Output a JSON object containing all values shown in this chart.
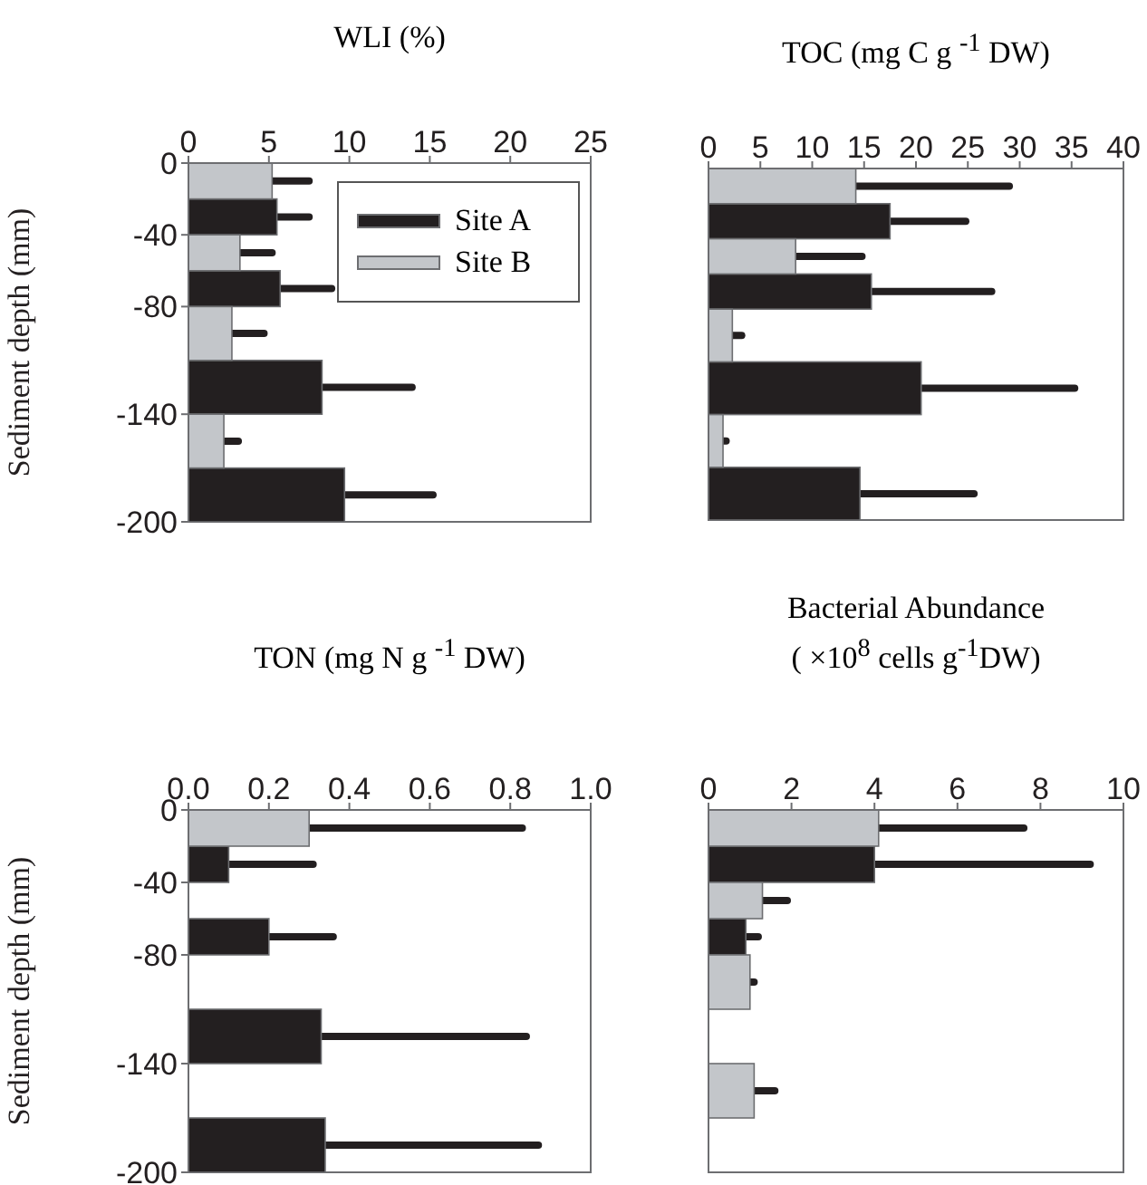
{
  "chart_data": [
    {
      "type": "bar",
      "orientation": "horizontal",
      "title": "WLI (%)",
      "ylabel": "Sediment depth  (mm)",
      "ylim": [
        -200,
        0
      ],
      "yticks": [
        0,
        -40,
        -80,
        -140,
        -200
      ],
      "xlim": [
        0,
        25
      ],
      "xticks": [
        0,
        5,
        10,
        15,
        20,
        25
      ],
      "legend": "top right",
      "grid": false,
      "series": [
        {
          "name": "Site A",
          "color": "#231f20",
          "x": [
            -30,
            -70,
            -125,
            -185
          ],
          "values": [
            5.5,
            5.7,
            8.3,
            9.7
          ],
          "errors": [
            [
              5.5,
              7.5
            ],
            [
              5.7,
              8.9
            ],
            [
              8.3,
              13.9
            ],
            [
              9.7,
              15.2
            ]
          ]
        },
        {
          "name": "Site B",
          "color": "#c3c6ca",
          "x": [
            -10,
            -50,
            -95,
            -155
          ],
          "values": [
            5.2,
            3.2,
            2.7,
            2.2
          ],
          "errors": [
            [
              5.2,
              7.5
            ],
            [
              3.2,
              5.2
            ],
            [
              2.7,
              4.7
            ],
            [
              2.2,
              3.1
            ]
          ]
        }
      ]
    },
    {
      "type": "bar",
      "orientation": "horizontal",
      "title": "TOC (mg C g $^{-1}$ DW)",
      "ylim": [
        -200,
        0
      ],
      "yticks": [
        0,
        -40,
        -80,
        -140,
        -200
      ],
      "xlim": [
        0,
        40
      ],
      "xticks": [
        0,
        5,
        10,
        15,
        20,
        25,
        30,
        35,
        40
      ],
      "tick_labels": "x",
      "grid": false,
      "series": [
        {
          "color": "#231f20",
          "x": [
            -30,
            -70,
            -125,
            -185
          ],
          "values": [
            17.5,
            15.7,
            20.5,
            14.6
          ],
          "errors": [
            [
              17.5,
              24.8
            ],
            [
              15.7,
              27.3
            ],
            [
              20.5,
              35.3
            ],
            [
              14.6,
              25.6
            ]
          ]
        },
        {
          "color": "#c3c6ca",
          "x": [
            -10,
            -50,
            -95,
            -155
          ],
          "values": [
            14.2,
            8.4,
            2.3,
            1.4
          ],
          "errors": [
            [
              14.2,
              29.0
            ],
            [
              8.4,
              14.8
            ],
            [
              2.3,
              3.2
            ],
            [
              1.4,
              1.7
            ]
          ]
        }
      ]
    },
    {
      "type": "bar",
      "orientation": "horizontal",
      "title": "TON (mg N  g $^{-1}$ DW)",
      "ylabel": "Sediment depth  (mm)",
      "ylim": [
        -200,
        0
      ],
      "yticks": [
        0,
        -40,
        -80,
        -140,
        -200
      ],
      "xlim": [
        0,
        1
      ],
      "xticks": [
        {
          "value": 0,
          "label": "0.0"
        },
        {
          "value": 0.2,
          "label": "0.2"
        },
        {
          "value": 0.4,
          "label": "0.4"
        },
        {
          "value": 0.6,
          "label": "0.6"
        },
        {
          "value": 0.8,
          "label": "0.8"
        },
        {
          "value": 1,
          "label": "1.0"
        }
      ],
      "grid": false,
      "series": [
        {
          "color": "#231f20",
          "x": [
            -30,
            -70,
            -125,
            -185
          ],
          "values": [
            0.1,
            0.2,
            0.33,
            0.34
          ],
          "errors": [
            [
              0.1,
              0.31
            ],
            [
              0.2,
              0.36
            ],
            [
              0.33,
              0.84
            ],
            [
              0.34,
              0.87
            ]
          ]
        },
        {
          "color": "#c3c6ca",
          "x": [
            -10
          ],
          "values": [
            0.3
          ],
          "errors": [
            [
              0.3,
              0.83
            ]
          ]
        }
      ]
    },
    {
      "type": "bar",
      "orientation": "horizontal",
      "title": "Bacterial Abundance\n( ×10$^{8}$ cells g$^{-1}$DW)",
      "ylim": [
        -200,
        0
      ],
      "yticks": [
        0,
        -40,
        -80,
        -140,
        -200
      ],
      "xlim": [
        0,
        10
      ],
      "xticks": [
        0,
        2,
        4,
        6,
        8,
        10
      ],
      "tick_labels": "x",
      "grid": false,
      "series": [
        {
          "color": "#231f20",
          "x": [
            -30,
            -70
          ],
          "values": [
            4.0,
            0.9
          ],
          "errors": [
            [
              4.0,
              9.2
            ],
            [
              0.9,
              1.2
            ]
          ]
        },
        {
          "color": "#c3c6ca",
          "x": [
            -10,
            -50,
            -95,
            -155
          ],
          "values": [
            4.1,
            1.3,
            1.0,
            1.1
          ],
          "errors": [
            [
              4.1,
              7.6
            ],
            [
              1.3,
              1.9
            ],
            [
              1.0,
              1.1
            ],
            [
              1.1,
              1.6
            ]
          ]
        }
      ]
    }
  ]
}
